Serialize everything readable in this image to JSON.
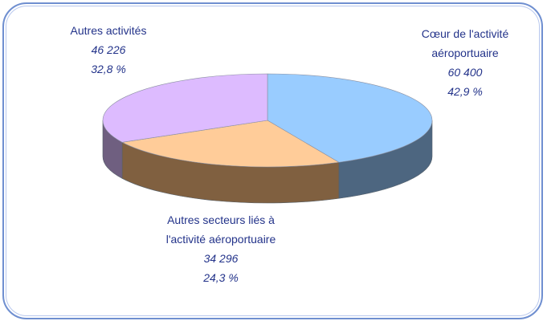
{
  "chart_data": {
    "type": "pie3d",
    "categories": [
      "Cœur de l'activité aéroportuaire",
      "Autres secteurs liés à l'activité aéroportuaire",
      "Autres activités"
    ],
    "values": [
      60400,
      34296,
      46226
    ],
    "value_labels": [
      "60 400",
      "34 296",
      "46 226"
    ],
    "percentages": [
      42.9,
      24.3,
      32.8
    ],
    "percentage_labels": [
      "42,9 %",
      "24,3 %",
      "32,8 %"
    ],
    "colors": [
      "#99ccff",
      "#ffcc99",
      "#ddbbff"
    ],
    "side_colors": [
      "#4d6680",
      "#806040",
      "#6f5f80"
    ]
  }
}
